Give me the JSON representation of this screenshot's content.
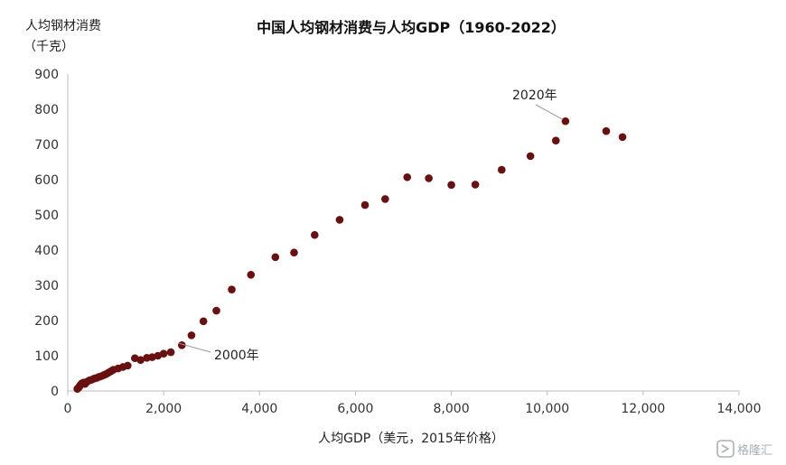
{
  "chart_data": {
    "type": "scatter",
    "title": "中国人均钢材消费与人均GDP（1960-2022）",
    "ylabel_line1": "人均钢材消费",
    "ylabel_line2": "（千克）",
    "xlabel": "人均GDP（美元，2015年价格）",
    "xlim": [
      0,
      14000
    ],
    "ylim": [
      0,
      900
    ],
    "x_ticks": [
      "0",
      "2,000",
      "4,000",
      "6,000",
      "8,000",
      "10,000",
      "12,000",
      "14,000"
    ],
    "y_ticks": [
      "0",
      "100",
      "200",
      "300",
      "400",
      "500",
      "600",
      "700",
      "800",
      "900"
    ],
    "point_color": "#6b0f0f",
    "points": [
      {
        "x": 200,
        "y": 6
      },
      {
        "x": 230,
        "y": 10
      },
      {
        "x": 250,
        "y": 14
      },
      {
        "x": 270,
        "y": 18
      },
      {
        "x": 300,
        "y": 22
      },
      {
        "x": 330,
        "y": 24
      },
      {
        "x": 360,
        "y": 20
      },
      {
        "x": 400,
        "y": 26
      },
      {
        "x": 450,
        "y": 30
      },
      {
        "x": 500,
        "y": 32
      },
      {
        "x": 550,
        "y": 35
      },
      {
        "x": 600,
        "y": 37
      },
      {
        "x": 650,
        "y": 40
      },
      {
        "x": 700,
        "y": 42
      },
      {
        "x": 750,
        "y": 45
      },
      {
        "x": 800,
        "y": 48
      },
      {
        "x": 850,
        "y": 52
      },
      {
        "x": 900,
        "y": 56
      },
      {
        "x": 950,
        "y": 60
      },
      {
        "x": 1050,
        "y": 64
      },
      {
        "x": 1150,
        "y": 68
      },
      {
        "x": 1250,
        "y": 72
      },
      {
        "x": 1400,
        "y": 93
      },
      {
        "x": 1520,
        "y": 88
      },
      {
        "x": 1650,
        "y": 94
      },
      {
        "x": 1760,
        "y": 96
      },
      {
        "x": 1880,
        "y": 100
      },
      {
        "x": 2000,
        "y": 106
      },
      {
        "x": 2150,
        "y": 110
      },
      {
        "x": 2380,
        "y": 130
      },
      {
        "x": 2580,
        "y": 158
      },
      {
        "x": 2830,
        "y": 198
      },
      {
        "x": 3100,
        "y": 228
      },
      {
        "x": 3420,
        "y": 288
      },
      {
        "x": 3820,
        "y": 330
      },
      {
        "x": 4330,
        "y": 380
      },
      {
        "x": 4720,
        "y": 393
      },
      {
        "x": 5150,
        "y": 443
      },
      {
        "x": 5670,
        "y": 486
      },
      {
        "x": 6200,
        "y": 528
      },
      {
        "x": 6620,
        "y": 545
      },
      {
        "x": 7080,
        "y": 607
      },
      {
        "x": 7530,
        "y": 604
      },
      {
        "x": 8000,
        "y": 585
      },
      {
        "x": 8500,
        "y": 586
      },
      {
        "x": 9050,
        "y": 628
      },
      {
        "x": 9650,
        "y": 667
      },
      {
        "x": 10180,
        "y": 711
      },
      {
        "x": 10380,
        "y": 766
      },
      {
        "x": 11230,
        "y": 738
      },
      {
        "x": 11570,
        "y": 721
      }
    ],
    "annotations": [
      {
        "label": "2020年",
        "x": 10380,
        "y": 766
      },
      {
        "label": "2000年",
        "x": 2380,
        "y": 130
      }
    ]
  },
  "watermark": "格隆汇"
}
